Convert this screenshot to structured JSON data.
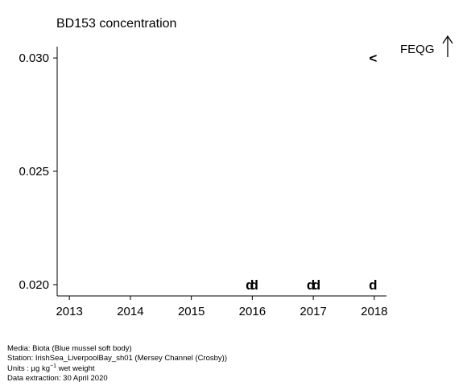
{
  "chart_data": {
    "type": "scatter",
    "title": "BD153 concentration",
    "xlabel": "",
    "ylabel": "",
    "x_ticks": [
      "2013",
      "2014",
      "2015",
      "2016",
      "2017",
      "2018"
    ],
    "y_ticks": [
      "0.020",
      "0.025",
      "0.030"
    ],
    "xlim": [
      2012.8,
      2018.2
    ],
    "ylim": [
      0.0195,
      0.0305
    ],
    "grid": false,
    "points": [
      {
        "x": 2015.96,
        "y": 0.02,
        "marker": "d"
      },
      {
        "x": 2016.03,
        "y": 0.02,
        "marker": "d"
      },
      {
        "x": 2016.96,
        "y": 0.02,
        "marker": "d"
      },
      {
        "x": 2017.05,
        "y": 0.02,
        "marker": "d"
      },
      {
        "x": 2017.98,
        "y": 0.02,
        "marker": "d"
      },
      {
        "x": 2017.98,
        "y": 0.03,
        "marker": "<"
      }
    ],
    "reference": {
      "label": "FEQG",
      "arrow": "up"
    }
  },
  "footer": {
    "media": "Media: Biota (Blue mussel soft body)",
    "station": "Station: IrishSea_LiverpoolBay_sh01 (Mersey Channel (Crosby))",
    "units_prefix": "Units : µg kg",
    "units_exp": "−1",
    "units_suffix": " wet weight",
    "extraction": "Data extraction: 30 April 2020"
  }
}
